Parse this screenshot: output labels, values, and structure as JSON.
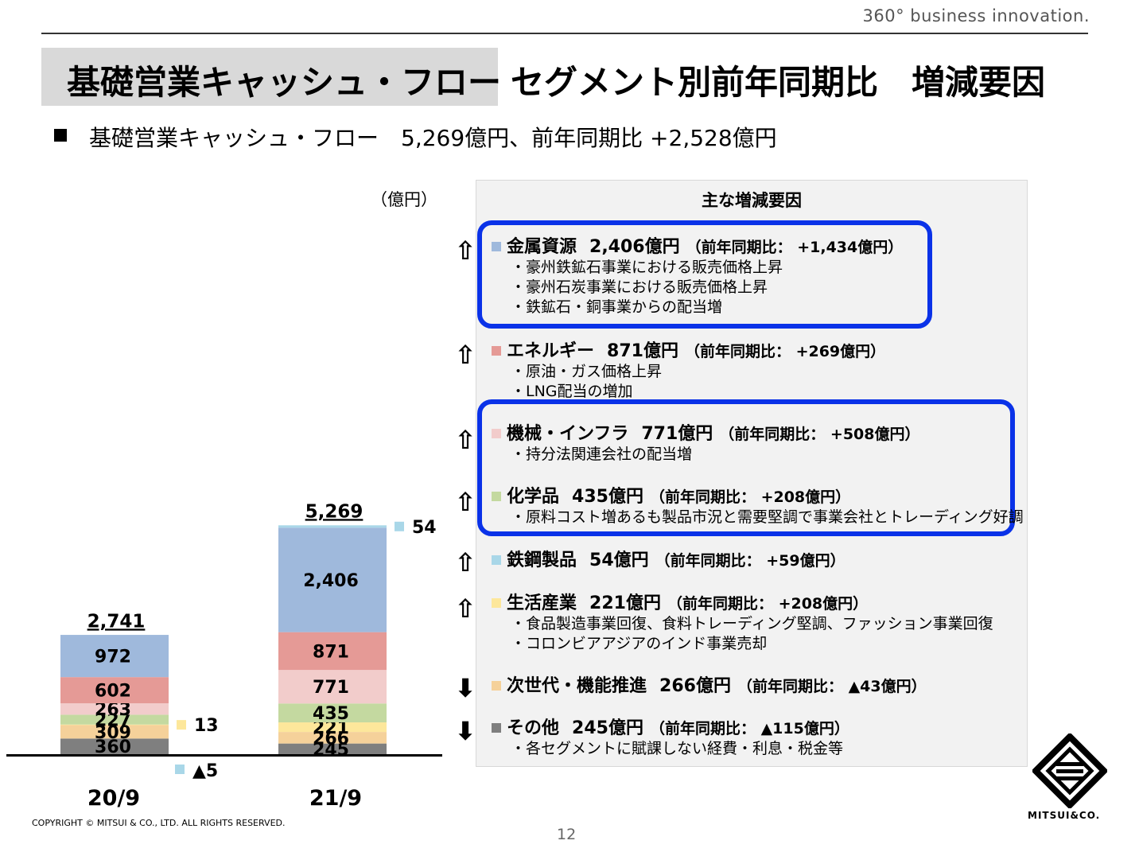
{
  "tagline": "360° business innovation.",
  "title": {
    "main": "基礎営業キャッシュ・フロー",
    "sub": "セグメント別前年同期比　増減要因"
  },
  "summary": "基礎営業キャッシュ・フロー　5,269億円、前年同期比 +2,528億円",
  "chart_data": {
    "type": "bar",
    "stacked": true,
    "unit": "（億円）",
    "categories": [
      "20/9",
      "21/9"
    ],
    "totals": [
      2741,
      5269
    ],
    "total_labels": [
      "2,741",
      "5,269"
    ],
    "series": [
      {
        "values": [
          360,
          245
        ],
        "labels": [
          "360",
          "245"
        ],
        "color": "#7f7f7f"
      },
      {
        "values": [
          309,
          266
        ],
        "labels": [
          "309",
          "266"
        ],
        "color": "#f5d19a"
      },
      {
        "values": [
          13,
          221
        ],
        "labels": [
          "13",
          "221"
        ],
        "color": "#fde79b"
      },
      {
        "values": [
          227,
          435
        ],
        "labels": [
          "227",
          "435"
        ],
        "color": "#c4d9a0"
      },
      {
        "values": [
          263,
          771
        ],
        "labels": [
          "263",
          "771"
        ],
        "color": "#f2cccb"
      },
      {
        "values": [
          602,
          871
        ],
        "labels": [
          "602",
          "871"
        ],
        "color": "#e59a96"
      },
      {
        "values": [
          972,
          2406
        ],
        "labels": [
          "972",
          "2,406"
        ],
        "color": "#9fb9dc"
      },
      {
        "values": [
          -5,
          54
        ],
        "labels": [
          "▲5",
          "54"
        ],
        "color": "#a9d7e8"
      }
    ],
    "ylim": [
      -300,
      5500
    ]
  },
  "panel": {
    "header": "主な増減要因",
    "segments": [
      {
        "name": "金属資源",
        "value": "2,406億円",
        "comparison": "（前年同期比： +1,434億円）",
        "color": "#9fb9dc",
        "direction": "⇧",
        "reasons": [
          "・豪州鉄鉱石事業における販売価格上昇",
          "・豪州石炭事業における販売価格上昇",
          "・鉄鉱石・銅事業からの配当増"
        ]
      },
      {
        "name": "エネルギー",
        "value": "871億円",
        "comparison": "（前年同期比： +269億円）",
        "color": "#e59a96",
        "direction": "⇧",
        "reasons": [
          "・原油・ガス価格上昇",
          "・LNG配当の増加"
        ]
      },
      {
        "name": "機械・インフラ",
        "value": "771億円",
        "comparison": "（前年同期比： +508億円）",
        "color": "#f2cccb",
        "direction": "⇧",
        "reasons": [
          "・持分法関連会社の配当増"
        ]
      },
      {
        "name": "化学品",
        "value": "435億円",
        "comparison": "（前年同期比： +208億円）",
        "color": "#c4d9a0",
        "direction": "⇧",
        "reasons": [
          "・原料コスト増あるも製品市況と需要堅調で事業会社とトレーディング好調"
        ]
      },
      {
        "name": "鉄鋼製品",
        "value": "54億円",
        "comparison": "（前年同期比： +59億円）",
        "color": "#a9d7e8",
        "direction": "⇧",
        "reasons": []
      },
      {
        "name": "生活産業",
        "value": "221億円",
        "comparison": "（前年同期比： +208億円）",
        "color": "#fde79b",
        "direction": "⇧",
        "reasons": [
          "・食品製造事業回復、食料トレーディング堅調、ファッション事業回復",
          "・コロンビアアジアのインド事業売却"
        ]
      },
      {
        "name": "次世代・機能推進",
        "value": "266億円",
        "comparison": "（前年同期比： ▲43億円）",
        "color": "#f5d19a",
        "direction": "⬇",
        "reasons": []
      },
      {
        "name": "その他",
        "value": "245億円",
        "comparison": "（前年同期比： ▲115億円）",
        "color": "#7f7f7f",
        "direction": "⬇",
        "reasons": [
          "・各セグメントに賦課しない経費・利息・税金等"
        ]
      }
    ]
  },
  "footer": {
    "copyright": "COPYRIGHT © MITSUI & CO.,  LTD. ALL RIGHTS RESERVED.",
    "page": "12",
    "logo_text": "MITSUI&CO."
  }
}
